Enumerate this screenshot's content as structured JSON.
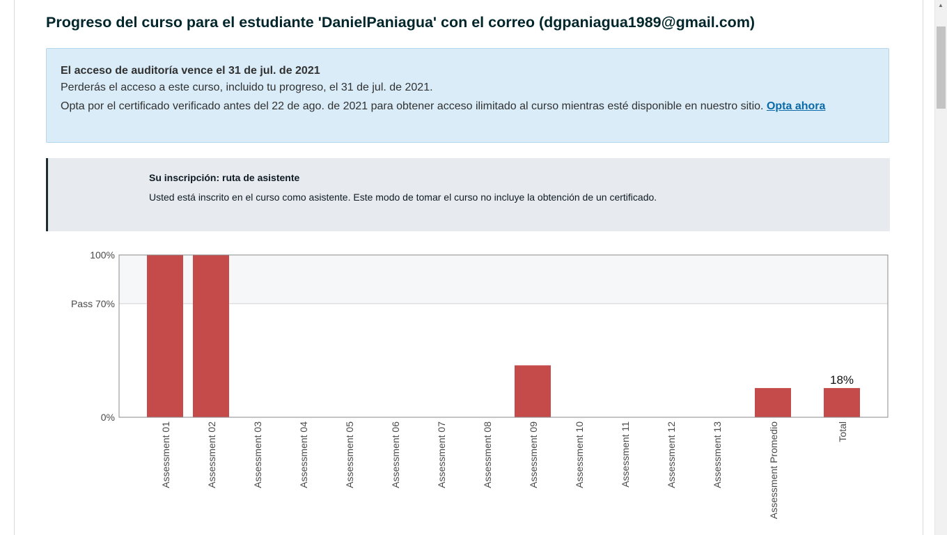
{
  "page": {
    "title": "Progreso del curso para el estudiante 'DanielPaniagua' con el correo (dgpaniagua1989@gmail.com)"
  },
  "audit_alert": {
    "heading": "El acceso de auditoría vence el 31 de jul. de 2021",
    "line1": "Perderás el acceso a este curso, incluido tu progreso, el 31 de jul. de 2021.",
    "line2": "Opta por el certificado verificado antes del 22 de ago. de 2021 para obtener acceso ilimitado al curso mientras esté disponible en nuestro sitio.",
    "link_label": "Opta ahora"
  },
  "enrollment": {
    "heading": "Su inscripción: ruta de asistente",
    "text": "Usted está inscrito en el curso como asistente. Este modo de tomar el curso no incluye la obtención de un certificado."
  },
  "chart_data": {
    "type": "bar",
    "categories": [
      "Assessment 01",
      "Assessment 02",
      "Assessment 03",
      "Assessment 04",
      "Assessment 05",
      "Assessment 06",
      "Assessment 07",
      "Assessment 08",
      "Assessment 09",
      "Assessment 10",
      "Assessment 11",
      "Assessment 12",
      "Assessment 13",
      "Assessment Promedio",
      "Total"
    ],
    "values": [
      100,
      100,
      0,
      0,
      0,
      0,
      0,
      0,
      32,
      0,
      0,
      0,
      0,
      18,
      18
    ],
    "ylim": [
      0,
      100
    ],
    "y_ticks": [
      {
        "value": 100,
        "label": "100%"
      },
      {
        "value": 70,
        "label": "Pass 70%"
      },
      {
        "value": 0,
        "label": "0%"
      }
    ],
    "pass_threshold": 70,
    "data_labels": [
      {
        "category": "Total",
        "label": "18%"
      }
    ],
    "bar_color": "#c54b4b",
    "pass_region_color": "#f6f7f8",
    "grid": false
  },
  "colors": {
    "title": "#00262b",
    "alert_bg": "#d9ecf8",
    "link": "#0b6aa8",
    "enroll_bg": "#e7eaee"
  }
}
